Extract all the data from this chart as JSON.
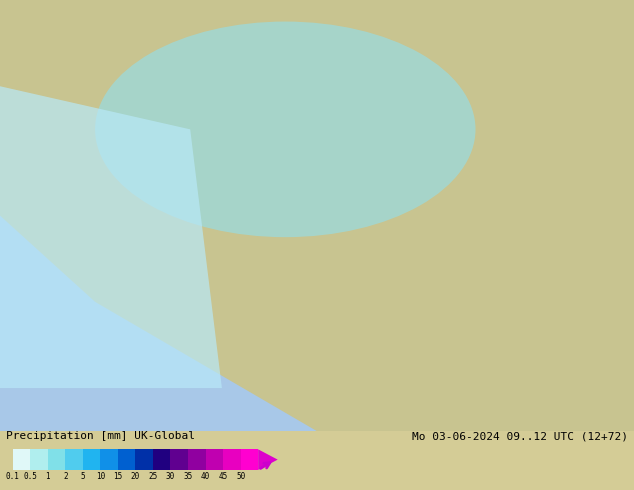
{
  "title_left": "Precipitation [mm] UK-Global",
  "title_right": "Mo 03-06-2024 09..12 UTC (12+72)",
  "colorbar_values": [
    0.1,
    0.5,
    1,
    2,
    5,
    10,
    15,
    20,
    25,
    30,
    35,
    40,
    45,
    50
  ],
  "colorbar_labels": [
    "0.1",
    "0.5",
    "1",
    "2",
    "5",
    "10",
    "15",
    "20",
    "25",
    "30",
    "35",
    "40",
    "45",
    "50"
  ],
  "colors": [
    "#e0f8f8",
    "#b0eeee",
    "#80e0e8",
    "#50ccee",
    "#20b4f0",
    "#1090e8",
    "#0060d0",
    "#0030a8",
    "#200080",
    "#600090",
    "#9000a0",
    "#c000b0",
    "#e800c0",
    "#ff00d0"
  ],
  "background_color": "#d4cc96",
  "map_bg": "#c8c890",
  "fig_width": 6.34,
  "fig_height": 4.9,
  "dpi": 100
}
